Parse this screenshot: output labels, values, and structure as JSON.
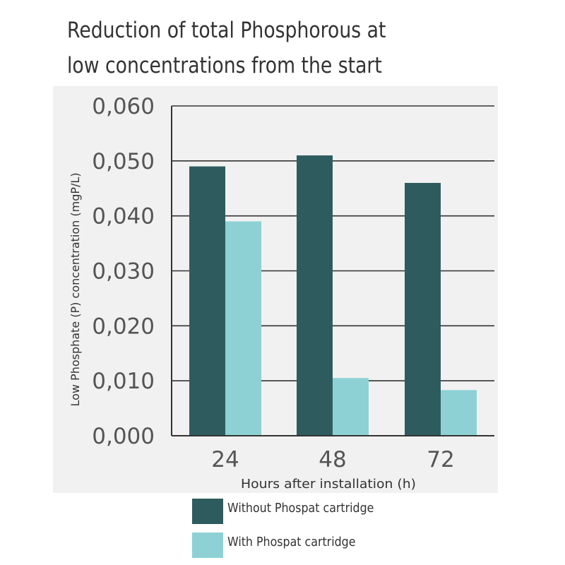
{
  "chart_data": {
    "type": "bar",
    "title": "Reduction of total Phosphorous at low concentrations from the start",
    "title_lines": [
      "Reduction of total Phosphorous at",
      "low concentrations from the start"
    ],
    "xlabel": "Hours after installation (h)",
    "ylabel": "Low Phosphate (P) concentration (mgP/L)",
    "categories": [
      "24",
      "48",
      "72"
    ],
    "ylim": [
      0,
      0.06
    ],
    "yticks": [
      0,
      0.01,
      0.02,
      0.03,
      0.04,
      0.05,
      0.06
    ],
    "ytick_labels": [
      "0,000",
      "0,010",
      "0,020",
      "0,030",
      "0,040",
      "0,050",
      "0,060"
    ],
    "grid": true,
    "legend_position": "bottom",
    "series": [
      {
        "name": "Without Phospat cartridge",
        "color": "#2e5c5e",
        "values": [
          0.049,
          0.051,
          0.046
        ]
      },
      {
        "name": "With Phospat cartridge",
        "color": "#8dd1d5",
        "values": [
          0.039,
          0.0105,
          0.0083
        ]
      }
    ]
  }
}
